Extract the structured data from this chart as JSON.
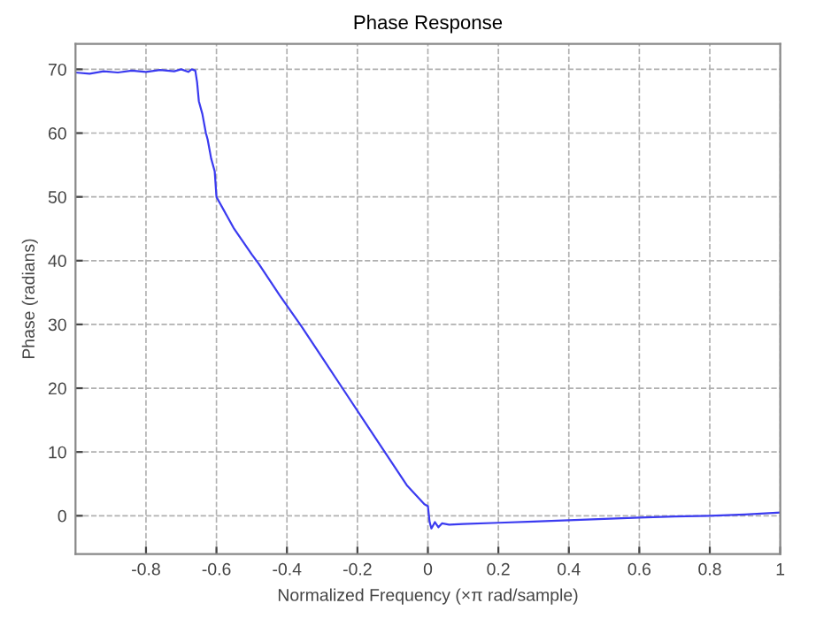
{
  "chart_data": {
    "type": "line",
    "title": "Phase Response",
    "xlabel": "Normalized Frequency (×π rad/sample)",
    "ylabel": "Phase (radians)",
    "xlim": [
      -1,
      1
    ],
    "ylim": [
      -6,
      74
    ],
    "xticks": [
      -0.8,
      -0.6,
      -0.4,
      -0.2,
      0,
      0.2,
      0.4,
      0.6,
      0.8,
      1
    ],
    "yticks": [
      0,
      10,
      20,
      30,
      40,
      50,
      60,
      70
    ],
    "grid": true,
    "line_style": "solid",
    "marker": "none",
    "series": [
      {
        "color": "#3b3bf0",
        "x": [
          -1,
          -0.96,
          -0.92,
          -0.88,
          -0.84,
          -0.8,
          -0.76,
          -0.72,
          -0.7,
          -0.68,
          -0.67,
          -0.66,
          -0.655,
          -0.65,
          -0.64,
          -0.63,
          -0.625,
          -0.615,
          -0.605,
          -0.6,
          -0.55,
          -0.5,
          -0.48,
          -0.42,
          -0.36,
          -0.3,
          -0.24,
          -0.18,
          -0.12,
          -0.06,
          -0.01,
          0,
          0.005,
          0.01,
          0.02,
          0.03,
          0.04,
          0.06,
          0.1,
          0.2,
          0.3,
          0.4,
          0.5,
          0.6,
          0.7,
          0.8,
          0.9,
          1
        ],
        "values": [
          69.5,
          69.3,
          69.7,
          69.5,
          69.8,
          69.6,
          69.9,
          69.7,
          70,
          69.6,
          70,
          69.8,
          68,
          65,
          63,
          60,
          59,
          56,
          54,
          50,
          45,
          41,
          39.5,
          34.5,
          29.8,
          24.8,
          19.8,
          14.8,
          9.8,
          4.8,
          1.8,
          1.5,
          -1,
          -2,
          -1,
          -1.8,
          -1.2,
          -1.4,
          -1.3,
          -1.1,
          -0.9,
          -0.7,
          -0.5,
          -0.3,
          -0.1,
          0,
          0.2,
          0.5
        ]
      }
    ]
  }
}
